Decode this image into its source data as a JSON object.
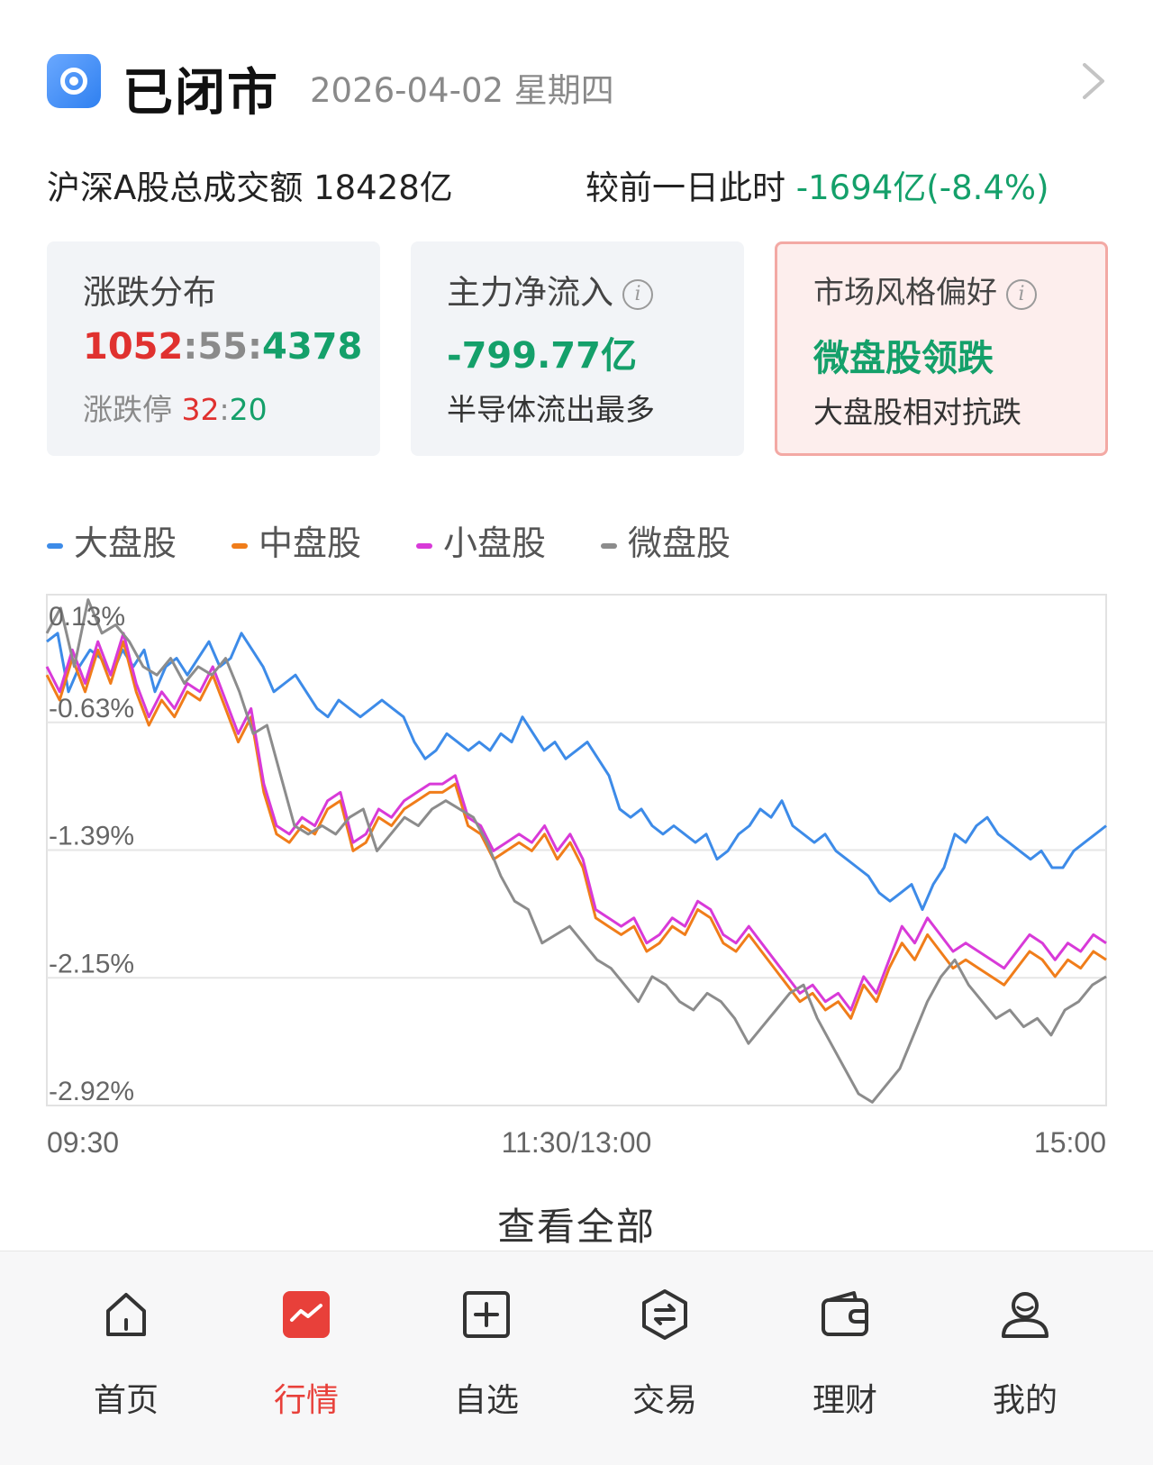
{
  "header": {
    "status": "已闭市",
    "date": "2026-04-02 星期四"
  },
  "turnover": {
    "label": "沪深A股总成交额",
    "value": "18428亿",
    "compare_label": "较前一日此时",
    "compare_value": "-1694亿(-8.4%)"
  },
  "cards": {
    "distribution": {
      "title": "涨跌分布",
      "up": "1052",
      "sep1": ":",
      "flat": "55",
      "sep2": ":",
      "down": "4378",
      "limit_label": "涨跌停",
      "limit_up": "32",
      "limit_sep": ":",
      "limit_down": "20"
    },
    "main_flow": {
      "title": "主力净流入",
      "value": "-799.77亿",
      "sub": "半导体流出最多"
    },
    "style": {
      "title": "市场风格偏好",
      "value": "微盘股领跌",
      "sub": "大盘股相对抗跌"
    }
  },
  "view_all": "查看全部",
  "tabs": [
    {
      "label": "首页",
      "icon": "home-icon"
    },
    {
      "label": "行情",
      "icon": "market-icon",
      "active": true
    },
    {
      "label": "自选",
      "icon": "add-watchlist-icon"
    },
    {
      "label": "交易",
      "icon": "trade-icon"
    },
    {
      "label": "理财",
      "icon": "wallet-icon"
    },
    {
      "label": "我的",
      "icon": "user-icon"
    }
  ],
  "chart_data": {
    "type": "line",
    "x_ticks": [
      "09:30",
      "11:30/13:00",
      "15:00"
    ],
    "y_ticks": [
      "0.13%",
      "-0.63%",
      "-1.39%",
      "-2.15%",
      "-2.92%"
    ],
    "ylim": [
      -2.92,
      0.13
    ],
    "legend_position": "top-left",
    "grid": true,
    "series": [
      {
        "name": "大盘股",
        "color": "#3d8be8",
        "values": [
          -0.15,
          -0.1,
          -0.45,
          -0.3,
          -0.2,
          -0.25,
          -0.35,
          -0.2,
          -0.3,
          -0.2,
          -0.45,
          -0.3,
          -0.25,
          -0.35,
          -0.25,
          -0.15,
          -0.3,
          -0.25,
          -0.1,
          -0.2,
          -0.3,
          -0.45,
          -0.4,
          -0.35,
          -0.45,
          -0.55,
          -0.6,
          -0.5,
          -0.55,
          -0.6,
          -0.55,
          -0.5,
          -0.55,
          -0.6,
          -0.75,
          -0.85,
          -0.8,
          -0.7,
          -0.75,
          -0.8,
          -0.75,
          -0.8,
          -0.7,
          -0.75,
          -0.6,
          -0.7,
          -0.8,
          -0.75,
          -0.85,
          -0.8,
          -0.75,
          -0.85,
          -0.95,
          -1.15,
          -1.2,
          -1.15,
          -1.25,
          -1.3,
          -1.25,
          -1.3,
          -1.35,
          -1.3,
          -1.45,
          -1.4,
          -1.3,
          -1.25,
          -1.15,
          -1.2,
          -1.1,
          -1.25,
          -1.3,
          -1.35,
          -1.3,
          -1.4,
          -1.45,
          -1.5,
          -1.55,
          -1.65,
          -1.7,
          -1.65,
          -1.6,
          -1.75,
          -1.6,
          -1.5,
          -1.3,
          -1.35,
          -1.25,
          -1.2,
          -1.3,
          -1.35,
          -1.4,
          -1.45,
          -1.4,
          -1.5,
          -1.5,
          -1.4,
          -1.35,
          -1.3,
          -1.25
        ]
      },
      {
        "name": "中盘股",
        "color": "#f07d1a",
        "values": [
          -0.35,
          -0.5,
          -0.25,
          -0.45,
          -0.2,
          -0.4,
          -0.15,
          -0.45,
          -0.65,
          -0.5,
          -0.6,
          -0.45,
          -0.5,
          -0.35,
          -0.55,
          -0.75,
          -0.6,
          -1.05,
          -1.3,
          -1.35,
          -1.25,
          -1.3,
          -1.15,
          -1.1,
          -1.4,
          -1.35,
          -1.2,
          -1.25,
          -1.15,
          -1.1,
          -1.05,
          -1.05,
          -1.0,
          -1.25,
          -1.3,
          -1.45,
          -1.4,
          -1.35,
          -1.4,
          -1.3,
          -1.45,
          -1.35,
          -1.5,
          -1.8,
          -1.85,
          -1.9,
          -1.85,
          -2.0,
          -1.95,
          -1.85,
          -1.9,
          -1.75,
          -1.8,
          -1.95,
          -2.0,
          -1.9,
          -2.0,
          -2.1,
          -2.2,
          -2.3,
          -2.25,
          -2.35,
          -2.3,
          -2.4,
          -2.2,
          -2.3,
          -2.1,
          -1.95,
          -2.05,
          -1.9,
          -2.0,
          -2.1,
          -2.05,
          -2.1,
          -2.15,
          -2.2,
          -2.1,
          -2.0,
          -2.05,
          -2.15,
          -2.05,
          -2.1,
          -2.0,
          -2.05
        ]
      },
      {
        "name": "小盘股",
        "color": "#d83ad8",
        "values": [
          -0.3,
          -0.45,
          -0.2,
          -0.4,
          -0.15,
          -0.35,
          -0.1,
          -0.4,
          -0.6,
          -0.45,
          -0.55,
          -0.4,
          -0.45,
          -0.3,
          -0.5,
          -0.7,
          -0.55,
          -1.0,
          -1.25,
          -1.3,
          -1.2,
          -1.25,
          -1.1,
          -1.05,
          -1.35,
          -1.3,
          -1.15,
          -1.2,
          -1.1,
          -1.05,
          -1.0,
          -1.0,
          -0.95,
          -1.2,
          -1.25,
          -1.4,
          -1.35,
          -1.3,
          -1.35,
          -1.25,
          -1.4,
          -1.3,
          -1.45,
          -1.75,
          -1.8,
          -1.85,
          -1.8,
          -1.95,
          -1.9,
          -1.8,
          -1.85,
          -1.7,
          -1.75,
          -1.9,
          -1.95,
          -1.85,
          -1.95,
          -2.05,
          -2.15,
          -2.25,
          -2.2,
          -2.3,
          -2.25,
          -2.35,
          -2.15,
          -2.25,
          -2.05,
          -1.85,
          -1.95,
          -1.8,
          -1.9,
          -2.0,
          -1.95,
          -2.0,
          -2.05,
          -2.1,
          -2.0,
          -1.9,
          -1.95,
          -2.05,
          -1.95,
          -2.0,
          -1.9,
          -1.95
        ]
      },
      {
        "name": "微盘股",
        "color": "#8c8c8c",
        "values": [
          -0.1,
          0.05,
          -0.3,
          0.1,
          -0.1,
          -0.05,
          -0.15,
          -0.3,
          -0.35,
          -0.25,
          -0.4,
          -0.3,
          -0.35,
          -0.25,
          -0.45,
          -0.7,
          -0.65,
          -0.95,
          -1.25,
          -1.3,
          -1.25,
          -1.3,
          -1.2,
          -1.15,
          -1.4,
          -1.3,
          -1.2,
          -1.25,
          -1.15,
          -1.1,
          -1.15,
          -1.2,
          -1.35,
          -1.55,
          -1.7,
          -1.75,
          -1.95,
          -1.9,
          -1.85,
          -1.95,
          -2.05,
          -2.1,
          -2.2,
          -2.3,
          -2.15,
          -2.2,
          -2.3,
          -2.35,
          -2.25,
          -2.3,
          -2.4,
          -2.55,
          -2.45,
          -2.35,
          -2.25,
          -2.2,
          -2.4,
          -2.55,
          -2.7,
          -2.85,
          -2.9,
          -2.8,
          -2.7,
          -2.5,
          -2.3,
          -2.15,
          -2.05,
          -2.2,
          -2.3,
          -2.4,
          -2.35,
          -2.45,
          -2.4,
          -2.5,
          -2.35,
          -2.3,
          -2.2,
          -2.15
        ]
      }
    ]
  }
}
